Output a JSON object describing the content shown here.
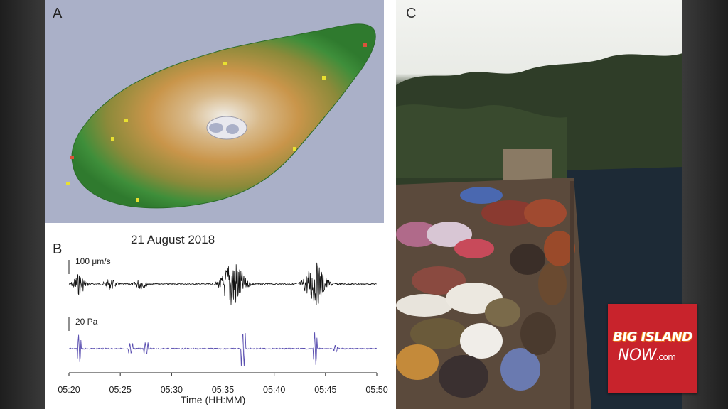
{
  "panel_a": {
    "letter": "A"
  },
  "panel_b": {
    "letter": "B",
    "title": "21 August 2018",
    "top_trace_label": "100 μm/s",
    "bottom_trace_label": "20 Pa",
    "x_axis_title": "Time (HH:MM)",
    "x_ticks": [
      "05:20",
      "05:25",
      "05:30",
      "05:35",
      "05:40",
      "05:45",
      "05:50"
    ],
    "top_trace_color": "#111111",
    "bottom_trace_color": "#5a4fb0"
  },
  "panel_c": {
    "letter": "C"
  },
  "logo": {
    "line1": "BIG ISLAND",
    "line2": "NOW",
    "tld": ".com",
    "color": "#c8232c"
  },
  "chart_data": {
    "type": "line",
    "title": "21 August 2018",
    "xlabel": "Time (HH:MM)",
    "x_ticks": [
      "05:20",
      "05:25",
      "05:30",
      "05:35",
      "05:40",
      "05:45",
      "05:50"
    ],
    "xlim": [
      "05:20",
      "05:50"
    ],
    "series": [
      {
        "name": "100 μm/s",
        "bursts": [
          {
            "time": "05:21",
            "amplitude": 0.4
          },
          {
            "time": "05:24",
            "amplitude": 0.2
          },
          {
            "time": "05:27",
            "amplitude": 0.2
          },
          {
            "time": "05:36",
            "amplitude": 1.0
          },
          {
            "time": "05:44",
            "amplitude": 0.8
          }
        ]
      },
      {
        "name": "20 Pa",
        "spikes": [
          {
            "time": "05:21",
            "amplitude": 0.8
          },
          {
            "time": "05:26",
            "amplitude": 0.3
          },
          {
            "time": "05:27.5",
            "amplitude": 0.35
          },
          {
            "time": "05:37",
            "amplitude": 1.0
          },
          {
            "time": "05:44",
            "amplitude": 0.95
          },
          {
            "time": "05:46",
            "amplitude": 0.2
          }
        ]
      }
    ]
  }
}
